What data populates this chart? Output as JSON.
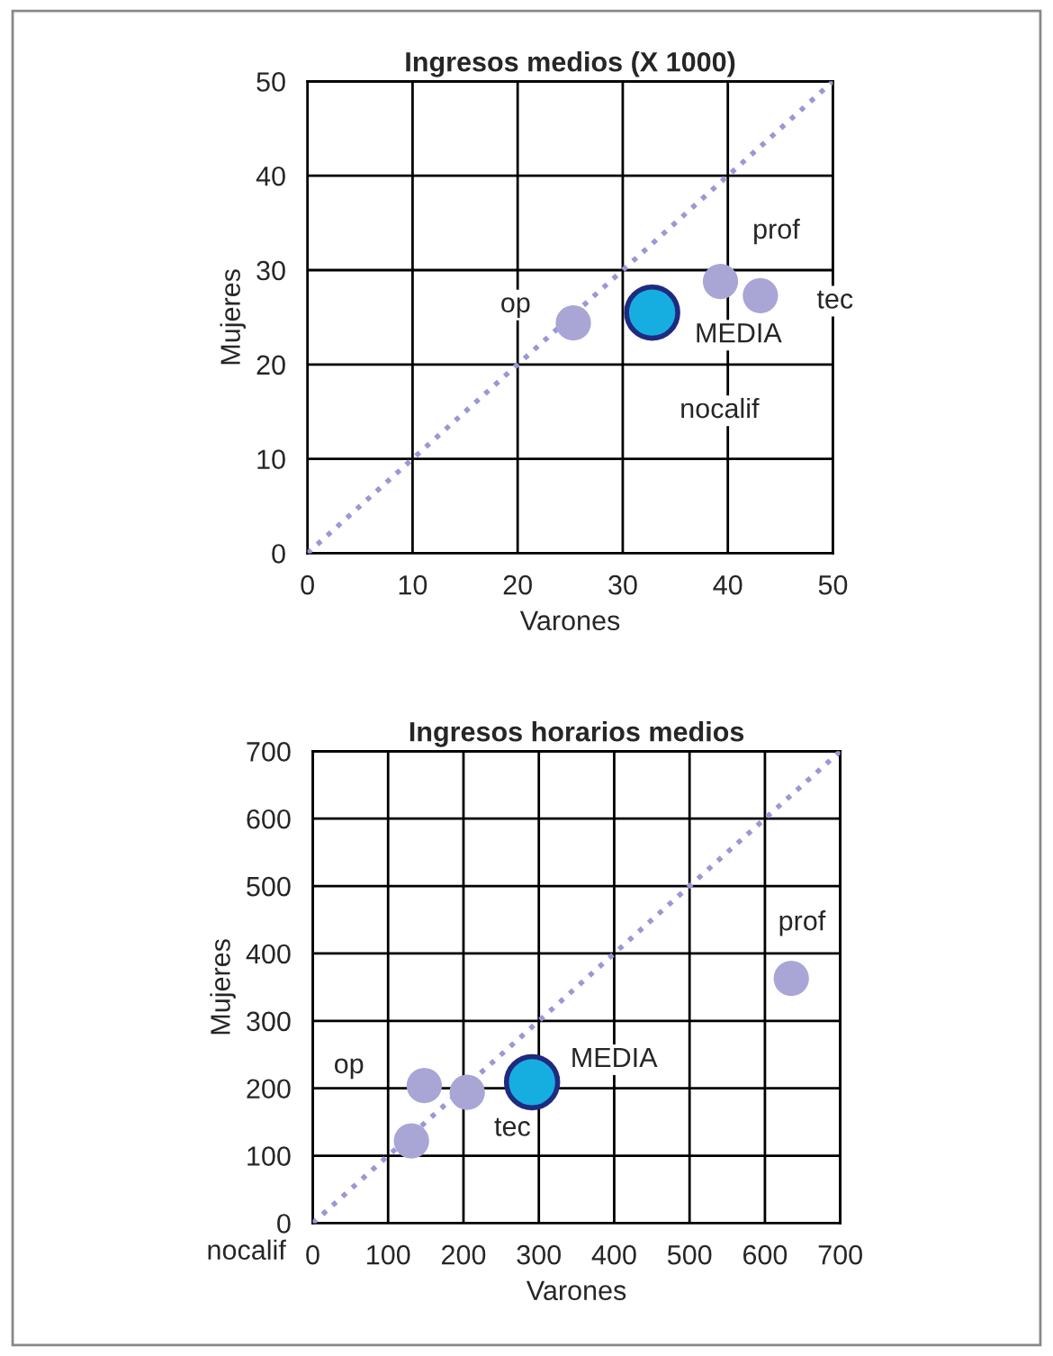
{
  "chart_data": [
    {
      "type": "scatter",
      "title": "Ingresos medios (X 1000)",
      "xlabel": "Varones",
      "ylabel": "Mujeres",
      "xlim": [
        0,
        50
      ],
      "ylim": [
        0,
        50
      ],
      "xticks": [
        0,
        10,
        20,
        30,
        40,
        50
      ],
      "yticks": [
        0,
        10,
        20,
        30,
        40,
        50
      ],
      "grid": true,
      "series": [
        {
          "type": "line",
          "color": "#9a98d4",
          "line_style": "dotted",
          "x": [
            0,
            50
          ],
          "values": [
            0,
            50
          ]
        },
        {
          "color": "#a9a6d6",
          "marker": "circle",
          "x": [
            25.3,
            39.3,
            43.1
          ],
          "values": [
            24.4,
            28.8,
            27.3
          ]
        },
        {
          "color": "#16aee0",
          "marker": "circle",
          "x": [
            32.8
          ],
          "values": [
            25.5
          ]
        }
      ],
      "annotations": [
        {
          "text": "op",
          "x": 19.8,
          "y": 26.3
        },
        {
          "text": "prof",
          "x": 44.6,
          "y": 34.1
        },
        {
          "text": "tec",
          "x": 50.2,
          "y": 26.7
        },
        "MEDIA",
        "nocalif"
      ]
    },
    {
      "type": "scatter",
      "title": "Ingresos horarios medios",
      "xlabel": "Varones",
      "ylabel": "Mujeres",
      "xlim": [
        0,
        700
      ],
      "ylim": [
        0,
        700
      ],
      "xticks": [
        0,
        100,
        200,
        300,
        400,
        500,
        600,
        700
      ],
      "yticks": [
        0,
        100,
        200,
        300,
        400,
        500,
        600,
        700
      ],
      "grid": true,
      "series": [
        {
          "type": "line",
          "color": "#9a98d4",
          "line_style": "dotted",
          "x": [
            0,
            700
          ],
          "values": [
            0,
            700
          ]
        },
        {
          "color": "#a9a6d6",
          "marker": "circle",
          "x": [
            148,
            205,
            131,
            635
          ],
          "values": [
            204,
            194,
            122,
            363
          ]
        },
        {
          "color": "#16aee0",
          "marker": "circle",
          "x": [
            291
          ],
          "values": [
            209
          ]
        }
      ],
      "annotations": [
        {
          "text": "op",
          "x": 48,
          "y": 233
        },
        {
          "text": "tec",
          "x": 265,
          "y": 140
        },
        "MEDIA",
        {
          "text": "prof",
          "x": 649,
          "y": 445
        },
        "nocalif"
      ]
    }
  ]
}
